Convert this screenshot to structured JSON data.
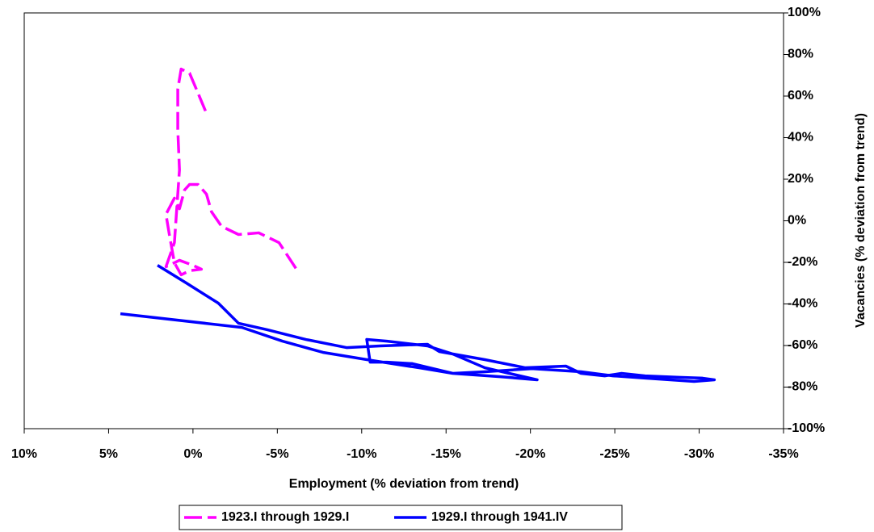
{
  "chart_data": {
    "type": "line",
    "x_label": "Employment (% deviation from trend)",
    "y_label": "Vacancies (% deviation from trend)",
    "xlim": [
      10,
      -35
    ],
    "xticks": [
      {
        "value": 10,
        "label": "10%"
      },
      {
        "value": 5,
        "label": "5%"
      },
      {
        "value": 0,
        "label": "0%"
      },
      {
        "value": -5,
        "label": "-5%"
      },
      {
        "value": -10,
        "label": "-10%"
      },
      {
        "value": -15,
        "label": "-15%"
      },
      {
        "value": -20,
        "label": "-20%"
      },
      {
        "value": -25,
        "label": "-25%"
      },
      {
        "value": -30,
        "label": "-30%"
      },
      {
        "value": -35,
        "label": "-35%"
      }
    ],
    "ylim": [
      -100,
      100
    ],
    "yticks": [
      {
        "value": 100,
        "label": "100%"
      },
      {
        "value": 80,
        "label": "80%"
      },
      {
        "value": 60,
        "label": "60%"
      },
      {
        "value": 40,
        "label": "40%"
      },
      {
        "value": 20,
        "label": "20%"
      },
      {
        "value": 0,
        "label": "0%"
      },
      {
        "value": -20,
        "label": "-20%"
      },
      {
        "value": -40,
        "label": "-40%"
      },
      {
        "value": -60,
        "label": "-60%"
      },
      {
        "value": -80,
        "label": "-80%"
      },
      {
        "value": -100,
        "label": "-100%"
      }
    ],
    "series": [
      {
        "name": "1923.I through 1929.I",
        "color": "#ff00ff",
        "dashed": true,
        "x": [
          -6.1,
          -5.1,
          -3.9,
          -2.7,
          -1.7,
          -1.1,
          -0.8,
          -0.3,
          0.2,
          0.5,
          0.8,
          1.1,
          1.6,
          1.4,
          1.1,
          0.7,
          0.2,
          -0.5,
          0,
          0.8,
          1.6,
          1.1,
          0.9,
          0.8,
          0.9,
          0.9,
          0.7,
          0.2,
          -0.3,
          -0.8
        ],
        "values": [
          -22.9,
          -10.5,
          -5.8,
          -6.6,
          -2.7,
          4.3,
          12.8,
          17.5,
          17.5,
          14.8,
          5.8,
          10.9,
          3.1,
          -6.6,
          -20.2,
          -26,
          -24,
          -23.3,
          -21.4,
          -19,
          -22.1,
          -10.5,
          12.8,
          24.5,
          43.9,
          63.3,
          73,
          71,
          61.4,
          51.7
        ]
      },
      {
        "name": "1929.I through 1941.IV",
        "color": "#0000ff",
        "dashed": false,
        "x": [
          2.1,
          0.4,
          -1.5,
          -2.7,
          -4.4,
          -6.7,
          -9.1,
          -11.1,
          -13.9,
          -14.6,
          -17.3,
          -19.7,
          -22.1,
          -23,
          -24.4,
          -25.4,
          -26.8,
          -28.8,
          -30.2,
          -30.9,
          -29.7,
          -26.8,
          -24.9,
          -23,
          -20.1,
          -17.3,
          -15.4,
          -13,
          -11.5,
          -10.5,
          -10.3,
          -11.5,
          -13.9,
          -15.4,
          -17.3,
          -20.4,
          -18.2,
          -15.4,
          -13.4,
          -10.6,
          -7.7,
          -5.3,
          -2.9,
          4.3
        ],
        "values": [
          -21.4,
          -29.9,
          -39.6,
          -49.3,
          -52.4,
          -57.1,
          -61,
          -60.2,
          -59.4,
          -62.9,
          -66.8,
          -70.7,
          -69.9,
          -73.4,
          -74.6,
          -73.4,
          -74.6,
          -75.3,
          -75.7,
          -76.5,
          -77.3,
          -75.7,
          -74.6,
          -72.6,
          -71.1,
          -72.6,
          -73.4,
          -68.7,
          -68,
          -68,
          -57.1,
          -57.9,
          -60.2,
          -64.1,
          -70.7,
          -76.5,
          -75,
          -73.4,
          -70.7,
          -67.2,
          -63.3,
          -57.9,
          -51.3,
          -44.7
        ]
      }
    ]
  }
}
